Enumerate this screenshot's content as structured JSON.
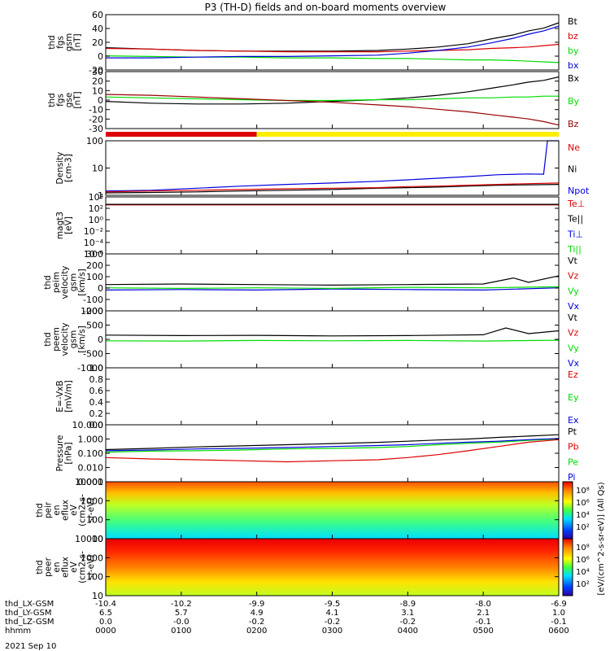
{
  "chart_data": {
    "type": "line",
    "title": "P3 (TH-D) fields and on-board moments overview",
    "colors": {
      "black": "#000000",
      "red": "#dd0000",
      "green": "#00dd00",
      "blue": "#0000dd",
      "yellow": "#ffee00",
      "darkred": "#990000"
    },
    "panels": [
      {
        "id": "fgs-gsm",
        "ylabel": [
          "thd",
          "fgs",
          "gsm",
          "[nT]"
        ],
        "yticks": [
          "60",
          "40",
          "20",
          "0",
          "-20"
        ],
        "ylim": [
          -20,
          62
        ],
        "legend": [
          {
            "name": "Bt",
            "color": "black"
          },
          {
            "name": "bz",
            "color": "red"
          },
          {
            "name": "by",
            "color": "green"
          },
          {
            "name": "bx",
            "color": "blue"
          }
        ],
        "series": [
          {
            "name": "Bt",
            "color": "black",
            "x": [
              0,
              60,
              120,
              180,
              240,
              300,
              360,
              400,
              440,
              480,
              510,
              540,
              560,
              580,
              600
            ],
            "y": [
              13,
              11,
              9,
              8,
              8,
              8,
              9,
              11,
              14,
              19,
              26,
              32,
              38,
              42,
              50
            ]
          },
          {
            "name": "bz",
            "color": "red",
            "x": [
              0,
              60,
              120,
              180,
              240,
              300,
              360,
              400,
              440,
              480,
              510,
              540,
              560,
              580,
              600
            ],
            "y": [
              12,
              11,
              9,
              8,
              7,
              7,
              7,
              8,
              9,
              10,
              12,
              13,
              14,
              16,
              18
            ]
          },
          {
            "name": "by",
            "color": "green",
            "x": [
              0,
              60,
              120,
              180,
              240,
              300,
              360,
              400,
              440,
              480,
              510,
              540,
              560,
              580,
              600
            ],
            "y": [
              1,
              0,
              -1,
              -1,
              -2,
              -2,
              -3,
              -3,
              -4,
              -5,
              -5,
              -6,
              -7,
              -8,
              -9
            ]
          },
          {
            "name": "bx",
            "color": "blue",
            "x": [
              0,
              60,
              120,
              180,
              240,
              300,
              360,
              400,
              440,
              480,
              510,
              540,
              560,
              580,
              600
            ],
            "y": [
              -2,
              -2,
              -1,
              0,
              0,
              1,
              2,
              5,
              9,
              14,
              20,
              27,
              33,
              38,
              45
            ]
          }
        ]
      },
      {
        "id": "fgs-gse",
        "ylabel": [
          "thd",
          "fgs",
          "gse",
          "[nT]"
        ],
        "yticks": [
          "30",
          "20",
          "10",
          "0",
          "-10",
          "-20",
          "-30"
        ],
        "ylim": [
          -33,
          32
        ],
        "legend": [
          {
            "name": "Bx",
            "color": "black"
          },
          {
            "name": "By",
            "color": "green"
          },
          {
            "name": "Bz",
            "color": "darkred"
          }
        ],
        "series": [
          {
            "name": "Bx",
            "color": "black",
            "x": [
              0,
              60,
              120,
              180,
              240,
              300,
              360,
              400,
              440,
              480,
              510,
              540,
              560,
              580,
              600
            ],
            "y": [
              -2,
              -4,
              -5,
              -5,
              -4,
              -2,
              0,
              2,
              5,
              9,
              13,
              17,
              20,
              22,
              26
            ]
          },
          {
            "name": "By",
            "color": "green",
            "x": [
              0,
              60,
              120,
              180,
              240,
              300,
              360,
              400,
              440,
              480,
              510,
              540,
              560,
              580,
              600
            ],
            "y": [
              3,
              2,
              1,
              0,
              -1,
              -1,
              0,
              0,
              1,
              2,
              2,
              3,
              3,
              4,
              4
            ]
          },
          {
            "name": "Bz",
            "color": "darkred",
            "x": [
              0,
              60,
              120,
              180,
              240,
              300,
              360,
              400,
              440,
              480,
              510,
              540,
              560,
              580,
              600
            ],
            "y": [
              6,
              5,
              3,
              1,
              -1,
              -3,
              -6,
              -8,
              -11,
              -14,
              -17,
              -20,
              -22,
              -25,
              -29
            ]
          }
        ]
      },
      {
        "id": "density",
        "ylabel": [
          "Density",
          "[cm-3]"
        ],
        "yticks": [
          "100",
          "10",
          "1"
        ],
        "log": true,
        "ylim": [
          0.3,
          200
        ],
        "legend": [
          {
            "name": "Ne",
            "color": "red"
          },
          {
            "name": "Ni",
            "color": "black"
          },
          {
            "name": "Npot",
            "color": "blue"
          }
        ],
        "series": [
          {
            "name": "Npot",
            "color": "blue",
            "x": [
              0,
              60,
              120,
              180,
              240,
              300,
              360,
              400,
              440,
              480,
              520,
              560,
              580,
              585,
              600
            ],
            "y": [
              0.5,
              0.55,
              0.7,
              0.9,
              1.1,
              1.3,
              1.6,
              1.9,
              2.3,
              2.8,
              3.5,
              3.8,
              3.7,
              200,
              200
            ]
          },
          {
            "name": "Ni",
            "color": "black",
            "x": [
              0,
              60,
              120,
              180,
              240,
              300,
              360,
              400,
              440,
              480,
              520,
              560,
              600
            ],
            "y": [
              0.4,
              0.42,
              0.45,
              0.5,
              0.55,
              0.6,
              0.7,
              0.75,
              0.8,
              0.9,
              1.0,
              1.05,
              1.1
            ]
          },
          {
            "name": "Ne",
            "color": "red",
            "x": [
              0,
              60,
              120,
              180,
              240,
              300,
              360,
              400,
              440,
              480,
              520,
              560,
              600
            ],
            "y": [
              0.45,
              0.5,
              0.55,
              0.6,
              0.65,
              0.7,
              0.75,
              0.85,
              0.9,
              1.0,
              1.1,
              1.2,
              1.3
            ]
          }
        ]
      },
      {
        "id": "magt3",
        "ylabel": [
          "magt3",
          "[eV]"
        ],
        "yticks": [
          "10⁴",
          "10²",
          "10⁰",
          "10⁻²",
          "10⁻⁴",
          "10⁻⁶"
        ],
        "ylim": [
          0,
          1
        ],
        "legend": [
          {
            "name": "Te⊥",
            "color": "red"
          },
          {
            "name": "Te||",
            "color": "black"
          },
          {
            "name": "Ti⊥",
            "color": "blue"
          },
          {
            "name": "Ti||",
            "color": "green"
          }
        ],
        "series": [
          {
            "name": "Te",
            "color": "red",
            "x": [
              0,
              600
            ],
            "y": [
              0.86,
              0.86
            ]
          },
          {
            "name": "Ti",
            "color": "black",
            "x": [
              0,
              600
            ],
            "y": [
              0.87,
              0.87
            ]
          }
        ]
      },
      {
        "id": "peim",
        "ylabel": [
          "thd",
          "peim",
          "velocity",
          "gsm",
          "[km/s]"
        ],
        "yticks": [
          "300",
          "200",
          "100",
          "0",
          "-100",
          "-200"
        ],
        "ylim": [
          -200,
          320
        ],
        "legend": [
          {
            "name": "Vt",
            "color": "black"
          },
          {
            "name": "Vz",
            "color": "red"
          },
          {
            "name": "Vy",
            "color": "green"
          },
          {
            "name": "Vx",
            "color": "blue"
          }
        ],
        "series": [
          {
            "name": "Vt",
            "color": "black",
            "x": [
              0,
              100,
              200,
              300,
              400,
              500,
              540,
              560,
              600
            ],
            "y": [
              40,
              45,
              40,
              35,
              40,
              45,
              100,
              60,
              120
            ]
          },
          {
            "name": "Vx",
            "color": "blue",
            "x": [
              0,
              100,
              200,
              300,
              400,
              500,
              600
            ],
            "y": [
              -10,
              -5,
              -10,
              0,
              -5,
              -10,
              10
            ]
          },
          {
            "name": "Vy",
            "color": "green",
            "x": [
              0,
              100,
              200,
              300,
              400,
              500,
              600
            ],
            "y": [
              10,
              5,
              10,
              5,
              15,
              10,
              20
            ]
          }
        ]
      },
      {
        "id": "peem",
        "ylabel": [
          "thd",
          "peem",
          "velocity",
          "gsm",
          "[km/s]"
        ],
        "yticks": [
          "1000",
          "500",
          "0",
          "-500",
          "-1000"
        ],
        "ylim": [
          -1000,
          1000
        ],
        "legend": [
          {
            "name": "Vt",
            "color": "black"
          },
          {
            "name": "Vz",
            "color": "red"
          },
          {
            "name": "Vy",
            "color": "green"
          },
          {
            "name": "Vx",
            "color": "blue"
          }
        ],
        "series": [
          {
            "name": "Vt",
            "color": "black",
            "x": [
              0,
              100,
              200,
              300,
              400,
              500,
              530,
              560,
              600
            ],
            "y": [
              150,
              130,
              140,
              120,
              130,
              160,
              400,
              200,
              300
            ]
          },
          {
            "name": "Vy",
            "color": "green",
            "x": [
              0,
              100,
              200,
              300,
              400,
              500,
              600
            ],
            "y": [
              -50,
              -60,
              -40,
              -50,
              -40,
              -60,
              -30
            ]
          }
        ]
      },
      {
        "id": "efield",
        "ylabel": [
          "E=-VxB",
          "[mV/m]"
        ],
        "yticks": [
          "1.0",
          "0.8",
          "0.6",
          "0.4",
          "0.2",
          "0.0"
        ],
        "ylim": [
          0,
          1
        ],
        "legend": [
          {
            "name": "Ez",
            "color": "red"
          },
          {
            "name": "Ey",
            "color": "green"
          },
          {
            "name": "Ex",
            "color": "blue"
          }
        ],
        "series": []
      },
      {
        "id": "pressure",
        "ylabel": [
          "Pressure",
          "[nPa]"
        ],
        "yticks": [
          "10.000",
          "1.000",
          "0.100",
          "0.010",
          "0.001"
        ],
        "log": true,
        "ylim": [
          0.001,
          10
        ],
        "legend": [
          {
            "name": "Pt",
            "color": "black"
          },
          {
            "name": "Pb",
            "color": "red"
          },
          {
            "name": "Pe",
            "color": "green"
          },
          {
            "name": "Pi",
            "color": "blue"
          }
        ],
        "series": [
          {
            "name": "Pt",
            "color": "black",
            "x": [
              0,
              60,
              120,
              180,
              240,
              300,
              360,
              400,
              440,
              480,
              520,
              560,
              600
            ],
            "y": [
              0.18,
              0.22,
              0.28,
              0.33,
              0.4,
              0.48,
              0.58,
              0.7,
              0.85,
              1.0,
              1.3,
              1.6,
              2.0
            ]
          },
          {
            "name": "Pe",
            "color": "green",
            "x": [
              0,
              60,
              120,
              180,
              240,
              300,
              360,
              400,
              440,
              480,
              520,
              560,
              600
            ],
            "y": [
              0.12,
              0.14,
              0.15,
              0.17,
              0.2,
              0.22,
              0.25,
              0.3,
              0.4,
              0.5,
              0.6,
              0.8,
              1.0
            ]
          },
          {
            "name": "Pi",
            "color": "blue",
            "x": [
              0,
              60,
              120,
              180,
              240,
              300,
              360,
              400,
              440,
              480,
              520,
              560,
              600
            ],
            "y": [
              0.15,
              0.17,
              0.2,
              0.22,
              0.25,
              0.3,
              0.35,
              0.4,
              0.5,
              0.6,
              0.7,
              0.9,
              1.1
            ]
          },
          {
            "name": "Pb",
            "color": "red",
            "x": [
              0,
              60,
              120,
              180,
              240,
              300,
              360,
              400,
              440,
              480,
              520,
              560,
              600
            ],
            "y": [
              0.05,
              0.04,
              0.035,
              0.03,
              0.025,
              0.03,
              0.035,
              0.05,
              0.08,
              0.15,
              0.3,
              0.6,
              0.9
            ]
          }
        ]
      },
      {
        "id": "peir",
        "ylabel": [
          "thd",
          "peir",
          "en",
          "eflux",
          "eV",
          "(cm2-s-",
          "sr-eV)"
        ],
        "yticks": [
          "10000",
          "1000",
          "100",
          "10"
        ],
        "log": true,
        "ylim": [
          8,
          20000
        ],
        "spectrogram": true
      },
      {
        "id": "peer",
        "ylabel": [
          "thd",
          "peer",
          "en",
          "eflux",
          "eV",
          "(cm2-s-",
          "sr-eV)"
        ],
        "yticks": [
          "10000",
          "1000",
          "100",
          "10"
        ],
        "log": true,
        "ylim": [
          8,
          20000
        ],
        "spectrogram": true
      }
    ],
    "colorbar_label": "[eV/(cm^2-s-sr-eV)] (All Qs)",
    "colorbar_ticks_top": [
      "10⁸",
      "10⁶",
      "10⁴",
      "10²"
    ],
    "colorbar_ticks_bottom": [
      "10⁸",
      "10⁶",
      "10⁴",
      "10²"
    ],
    "xticks_minutes": [
      0,
      60,
      120,
      180,
      240,
      300,
      360
    ],
    "xlim_minutes": [
      0,
      360
    ],
    "x_rows": [
      {
        "label": "thd_LX-GSM",
        "values": [
          "-10.4",
          "-10.2",
          "-9.9",
          "-9.5",
          "-8.9",
          "-8.0",
          "-6.9"
        ]
      },
      {
        "label": "thd_LY-GSM",
        "values": [
          "6.5",
          "5.7",
          "4.9",
          "4.1",
          "3.1",
          "2.1",
          "1.0"
        ]
      },
      {
        "label": "thd_LZ-GSM",
        "values": [
          "0.0",
          "-0.0",
          "-0.2",
          "-0.2",
          "-0.2",
          "-0.1",
          "-0.1"
        ]
      },
      {
        "label": "hhmm",
        "values": [
          "0000",
          "0100",
          "0200",
          "0300",
          "0400",
          "0500",
          "0600"
        ]
      }
    ],
    "date": "2021 Sep 10"
  }
}
